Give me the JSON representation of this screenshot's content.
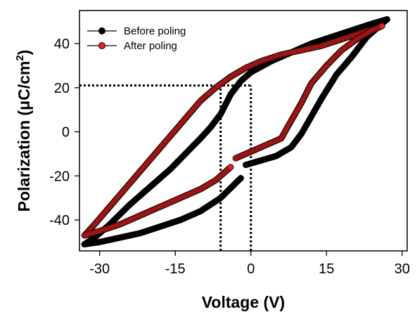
{
  "chart_data": {
    "type": "scatter",
    "xlabel": "Voltage (V)",
    "ylabel_main": "Polarization (μC/cm",
    "ylabel_sup": "2",
    "ylabel_end": ")",
    "xlim": [
      -34,
      31
    ],
    "ylim": [
      -54,
      55
    ],
    "xticks": [
      -30,
      -15,
      0,
      15,
      30
    ],
    "xtick_labels": [
      "-30",
      "-15",
      "0",
      "15",
      "30"
    ],
    "yticks": [
      -40,
      -20,
      0,
      20,
      40
    ],
    "ytick_labels": [
      "-40",
      "-20",
      "0",
      "20",
      "40"
    ],
    "grid": false,
    "legend_position": "top-left",
    "series": [
      {
        "name": "Before poling",
        "color": "#000000",
        "marker_fill": "#000000",
        "upper_branch": [
          [
            27,
            51
          ],
          [
            24,
            49
          ],
          [
            20,
            46
          ],
          [
            16,
            43
          ],
          [
            12,
            40
          ],
          [
            8,
            36
          ],
          [
            4,
            32
          ],
          [
            0,
            27
          ],
          [
            -2,
            23
          ],
          [
            -4,
            17
          ],
          [
            -6,
            8
          ],
          [
            -8,
            2
          ],
          [
            -10,
            -3
          ],
          [
            -13,
            -10
          ],
          [
            -16,
            -17
          ],
          [
            -20,
            -25
          ],
          [
            -24,
            -33
          ],
          [
            -28,
            -42
          ],
          [
            -31,
            -48
          ],
          [
            -33,
            -51
          ]
        ],
        "lower_branch": [
          [
            -33,
            -51
          ],
          [
            -30,
            -50
          ],
          [
            -26,
            -48
          ],
          [
            -22,
            -46
          ],
          [
            -18,
            -43
          ],
          [
            -14,
            -40
          ],
          [
            -10,
            -36
          ],
          [
            -6,
            -30
          ],
          [
            -2,
            -21
          ]
        ],
        "lower_branch_2": [
          [
            -1,
            -15
          ],
          [
            2,
            -13
          ],
          [
            5,
            -11
          ],
          [
            8,
            -7
          ],
          [
            10,
            -1
          ],
          [
            12,
            7
          ],
          [
            14,
            15
          ],
          [
            17,
            26
          ],
          [
            20,
            34
          ],
          [
            23,
            43
          ],
          [
            25,
            47
          ],
          [
            27,
            51
          ]
        ]
      },
      {
        "name": "After poling",
        "color": "#000000",
        "marker_fill": "#e8201e",
        "upper_branch": [
          [
            26,
            48
          ],
          [
            22,
            45
          ],
          [
            18,
            42
          ],
          [
            14,
            39
          ],
          [
            10,
            37
          ],
          [
            6,
            35
          ],
          [
            2,
            32
          ],
          [
            -1,
            29
          ],
          [
            -4,
            25
          ],
          [
            -7,
            20
          ],
          [
            -10,
            14
          ],
          [
            -13,
            6
          ],
          [
            -16,
            -2
          ],
          [
            -19,
            -10
          ],
          [
            -22,
            -18
          ],
          [
            -25,
            -26
          ],
          [
            -28,
            -34
          ],
          [
            -31,
            -42
          ],
          [
            -33,
            -47
          ]
        ],
        "lower_branch": [
          [
            -33,
            -47
          ],
          [
            -30,
            -45
          ],
          [
            -26,
            -42
          ],
          [
            -22,
            -38
          ],
          [
            -18,
            -34
          ],
          [
            -14,
            -30
          ],
          [
            -10,
            -26
          ],
          [
            -7,
            -22
          ],
          [
            -4,
            -16
          ]
        ],
        "lower_branch_2": [
          [
            -3,
            -12
          ],
          [
            -1,
            -10
          ],
          [
            2,
            -7
          ],
          [
            4,
            -5
          ],
          [
            6,
            -3
          ],
          [
            8,
            5
          ],
          [
            10,
            13
          ],
          [
            12,
            22
          ],
          [
            15,
            30
          ],
          [
            18,
            37
          ],
          [
            21,
            42
          ],
          [
            24,
            46
          ],
          [
            26,
            48
          ]
        ]
      }
    ],
    "annotations": {
      "h_line": {
        "y": 21,
        "x_from": -34,
        "x_to": 0
      },
      "v_line_left": {
        "x": -6,
        "y_from": -54,
        "y_to": 21
      },
      "v_line_zero": {
        "x": 0,
        "y_from": -54,
        "y_to": 21
      }
    }
  }
}
